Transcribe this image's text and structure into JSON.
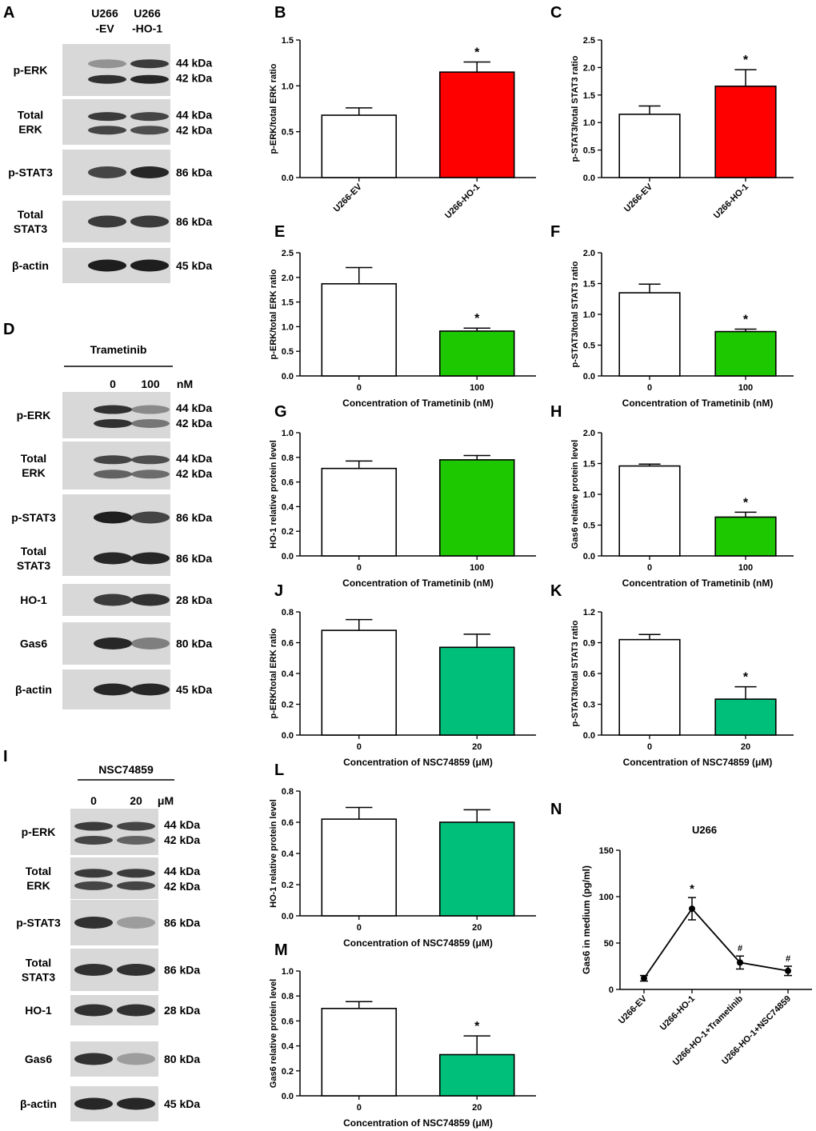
{
  "colors": {
    "red": "#ff0000",
    "green": "#1ec800",
    "teal": "#00bf7a",
    "white": "#ffffff",
    "black": "#000000",
    "blot_bg": "#d8d8d8",
    "band": "#141414"
  },
  "blots": [
    {
      "panel": "A",
      "header": {
        "type": "samples",
        "cols": [
          "U266\n-EV",
          "U266\n-HO-1"
        ]
      },
      "rows": [
        {
          "label": "p-ERK",
          "kda": [
            "44 kDa",
            "42 kDa"
          ],
          "bands": [
            [
              0.35,
              0.8
            ],
            [
              0.85,
              0.9
            ]
          ]
        },
        {
          "label": "Total\nERK",
          "kda": [
            "44 kDa",
            "42 kDa"
          ],
          "bands": [
            [
              0.8,
              0.75
            ],
            [
              0.75,
              0.7
            ]
          ]
        },
        {
          "label": "p-STAT3",
          "kda": [
            "86 kDa"
          ],
          "bands": [
            [
              0.75,
              0.9
            ]
          ]
        },
        {
          "label": "Total\nSTAT3",
          "kda": [
            "86 kDa"
          ],
          "bands": [
            [
              0.8,
              0.8
            ]
          ]
        },
        {
          "label": "β-actin",
          "kda": [
            "45 kDa"
          ],
          "bands": [
            [
              0.95,
              0.95
            ]
          ]
        }
      ]
    },
    {
      "panel": "D",
      "header": {
        "type": "drug",
        "drug": "Trametinib",
        "doses": [
          "0",
          "100"
        ],
        "unit": "nM"
      },
      "rows": [
        {
          "label": "p-ERK",
          "kda": [
            "44 kDa",
            "42 kDa"
          ],
          "bands": [
            [
              0.85,
              0.4
            ],
            [
              0.85,
              0.5
            ]
          ]
        },
        {
          "label": "Total\nERK",
          "kda": [
            "44 kDa",
            "42 kDa"
          ],
          "bands": [
            [
              0.75,
              0.7
            ],
            [
              0.6,
              0.55
            ]
          ]
        },
        {
          "label": "p-STAT3",
          "kda": [
            "86 kDa"
          ],
          "bands": [
            [
              0.95,
              0.75
            ]
          ]
        },
        {
          "label": "Total\nSTAT3",
          "kda": [
            "86 kDa"
          ],
          "bands": [
            [
              0.9,
              0.9
            ]
          ]
        },
        {
          "label": "HO-1",
          "kda": [
            "28 kDa"
          ],
          "bands": [
            [
              0.8,
              0.85
            ]
          ]
        },
        {
          "label": "Gas6",
          "kda": [
            "80 kDa"
          ],
          "bands": [
            [
              0.9,
              0.45
            ]
          ]
        },
        {
          "label": "β-actin",
          "kda": [
            "45 kDa"
          ],
          "bands": [
            [
              0.9,
              0.9
            ]
          ]
        }
      ]
    },
    {
      "panel": "I",
      "header": {
        "type": "drug",
        "drug": "NSC74859",
        "doses": [
          "0",
          "20"
        ],
        "unit": "μM"
      },
      "rows": [
        {
          "label": "p-ERK",
          "kda": [
            "44 kDa",
            "42 kDa"
          ],
          "bands": [
            [
              0.8,
              0.75
            ],
            [
              0.75,
              0.6
            ]
          ]
        },
        {
          "label": "Total\nERK",
          "kda": [
            "44 kDa",
            "42 kDa"
          ],
          "bands": [
            [
              0.8,
              0.8
            ],
            [
              0.75,
              0.75
            ]
          ]
        },
        {
          "label": "p-STAT3",
          "kda": [
            "86 kDa"
          ],
          "bands": [
            [
              0.85,
              0.3
            ]
          ]
        },
        {
          "label": "Total\nSTAT3",
          "kda": [
            "86 kDa"
          ],
          "bands": [
            [
              0.85,
              0.85
            ]
          ]
        },
        {
          "label": "HO-1",
          "kda": [
            "28 kDa"
          ],
          "bands": [
            [
              0.85,
              0.85
            ]
          ]
        },
        {
          "label": "Gas6",
          "kda": [
            "80 kDa"
          ],
          "bands": [
            [
              0.85,
              0.3
            ]
          ]
        },
        {
          "label": "β-actin",
          "kda": [
            "45 kDa"
          ],
          "bands": [
            [
              0.9,
              0.9
            ]
          ]
        }
      ]
    }
  ],
  "chart_data": [
    {
      "panel": "B",
      "type": "bar",
      "ylabel": "p-ERK/total ERK ratio",
      "xlabel": "",
      "categories": [
        "U266-EV",
        "U266-HO-1"
      ],
      "rotate_ticks": true,
      "values": [
        0.68,
        1.15
      ],
      "errors": [
        0.08,
        0.11
      ],
      "colors": [
        "white",
        "red"
      ],
      "ylim": [
        0,
        1.5
      ],
      "ticks": [
        0.0,
        0.5,
        1.0,
        1.5
      ],
      "tick_labels": [
        "0.0",
        "0.5",
        "1.0",
        "1.5"
      ],
      "marks": [
        "",
        "*"
      ]
    },
    {
      "panel": "C",
      "type": "bar",
      "ylabel": "p-STAT3/total STAT3 ratio",
      "xlabel": "",
      "categories": [
        "U266-EV",
        "U266-HO-1"
      ],
      "rotate_ticks": true,
      "values": [
        1.15,
        1.66
      ],
      "errors": [
        0.15,
        0.3
      ],
      "colors": [
        "white",
        "red"
      ],
      "ylim": [
        0,
        2.5
      ],
      "ticks": [
        0.0,
        0.5,
        1.0,
        1.5,
        2.0,
        2.5
      ],
      "tick_labels": [
        "0.0",
        "0.5",
        "1.0",
        "1.5",
        "2.0",
        "2.5"
      ],
      "marks": [
        "",
        "*"
      ]
    },
    {
      "panel": "E",
      "type": "bar",
      "ylabel": "p-ERK/total ERK ratio",
      "xlabel": "Concentration of Trametinib (nM)",
      "categories": [
        "0",
        "100"
      ],
      "values": [
        1.87,
        0.91
      ],
      "errors": [
        0.33,
        0.06
      ],
      "colors": [
        "white",
        "green"
      ],
      "ylim": [
        0,
        2.5
      ],
      "ticks": [
        0.0,
        0.5,
        1.0,
        1.5,
        2.0,
        2.5
      ],
      "tick_labels": [
        "0.0",
        "0.5",
        "1.0",
        "1.5",
        "2.0",
        "2.5"
      ],
      "marks": [
        "",
        "*"
      ]
    },
    {
      "panel": "F",
      "type": "bar",
      "ylabel": "p-STAT3/total STAT3 ratio",
      "xlabel": "Concentration of Trametinib (nM)",
      "categories": [
        "0",
        "100"
      ],
      "values": [
        1.35,
        0.72
      ],
      "errors": [
        0.14,
        0.04
      ],
      "colors": [
        "white",
        "green"
      ],
      "ylim": [
        0,
        2.0
      ],
      "ticks": [
        0.0,
        0.5,
        1.0,
        1.5,
        2.0
      ],
      "tick_labels": [
        "0.0",
        "0.5",
        "1.0",
        "1.5",
        "2.0"
      ],
      "marks": [
        "",
        "*"
      ]
    },
    {
      "panel": "G",
      "type": "bar",
      "ylabel": "HO-1 relative protein level",
      "xlabel": "Concentration of Trametinib (nM)",
      "categories": [
        "0",
        "100"
      ],
      "values": [
        0.71,
        0.78
      ],
      "errors": [
        0.06,
        0.035
      ],
      "colors": [
        "white",
        "green"
      ],
      "ylim": [
        0,
        1.0
      ],
      "ticks": [
        0.0,
        0.2,
        0.4,
        0.6,
        0.8,
        1.0
      ],
      "tick_labels": [
        "0.0",
        "0.2",
        "0.4",
        "0.6",
        "0.8",
        "1.0"
      ],
      "marks": [
        "",
        ""
      ]
    },
    {
      "panel": "H",
      "type": "bar",
      "ylabel": "Gas6 relative protein level",
      "xlabel": "Concentration of Trametinib (nM)",
      "categories": [
        "0",
        "100"
      ],
      "values": [
        1.46,
        0.63
      ],
      "errors": [
        0.03,
        0.08
      ],
      "colors": [
        "white",
        "green"
      ],
      "ylim": [
        0,
        2.0
      ],
      "ticks": [
        0.0,
        0.5,
        1.0,
        1.5,
        2.0
      ],
      "tick_labels": [
        "0.0",
        "0.5",
        "1.0",
        "1.5",
        "2.0"
      ],
      "marks": [
        "",
        "*"
      ]
    },
    {
      "panel": "J",
      "type": "bar",
      "ylabel": "p-ERK/total ERK ratio",
      "xlabel": "Concentration of NSC74859 (μM)",
      "categories": [
        "0",
        "20"
      ],
      "values": [
        0.68,
        0.57
      ],
      "errors": [
        0.07,
        0.085
      ],
      "colors": [
        "white",
        "teal"
      ],
      "ylim": [
        0,
        0.8
      ],
      "ticks": [
        0.0,
        0.2,
        0.4,
        0.6,
        0.8
      ],
      "tick_labels": [
        "0.0",
        "0.2",
        "0.4",
        "0.6",
        "0.8"
      ],
      "marks": [
        "",
        ""
      ]
    },
    {
      "panel": "K",
      "type": "bar",
      "ylabel": "p-STAT3/total STAT3 ratio",
      "xlabel": "Concentration of NSC74859 (μM)",
      "categories": [
        "0",
        "20"
      ],
      "values": [
        0.93,
        0.35
      ],
      "errors": [
        0.05,
        0.12
      ],
      "colors": [
        "white",
        "teal"
      ],
      "ylim": [
        0,
        1.2
      ],
      "ticks": [
        0.0,
        0.3,
        0.6,
        0.9,
        1.2
      ],
      "tick_labels": [
        "0.0",
        "0.3",
        "0.6",
        "0.9",
        "1.2"
      ],
      "marks": [
        "",
        "*"
      ]
    },
    {
      "panel": "L",
      "type": "bar",
      "ylabel": "HO-1 relative protein level",
      "xlabel": "Concentration of NSC74859 (μM)",
      "categories": [
        "0",
        "20"
      ],
      "values": [
        0.62,
        0.6
      ],
      "errors": [
        0.075,
        0.08
      ],
      "colors": [
        "white",
        "teal"
      ],
      "ylim": [
        0,
        0.8
      ],
      "ticks": [
        0.0,
        0.2,
        0.4,
        0.6,
        0.8
      ],
      "tick_labels": [
        "0.0",
        "0.2",
        "0.4",
        "0.6",
        "0.8"
      ],
      "marks": [
        "",
        ""
      ]
    },
    {
      "panel": "M",
      "type": "bar",
      "ylabel": "Gas6 relative protein level",
      "xlabel": "Concentration of NSC74859 (μM)",
      "categories": [
        "0",
        "20"
      ],
      "values": [
        0.7,
        0.33
      ],
      "errors": [
        0.055,
        0.15
      ],
      "colors": [
        "white",
        "teal"
      ],
      "ylim": [
        0,
        1.0
      ],
      "ticks": [
        0.0,
        0.2,
        0.4,
        0.6,
        0.8,
        1.0
      ],
      "tick_labels": [
        "0.0",
        "0.2",
        "0.4",
        "0.6",
        "0.8",
        "1.0"
      ],
      "marks": [
        "",
        "*"
      ]
    },
    {
      "panel": "N",
      "type": "line",
      "title": "U266",
      "ylabel": "Gas6 in medium (pg/ml)",
      "xlabel": "",
      "categories": [
        "U266-EV",
        "U266-HO-1",
        "U266-HO-1+Trametinib",
        "U266-HO-1+NSC74859"
      ],
      "values": [
        12,
        87,
        29,
        20
      ],
      "errors": [
        3,
        12,
        7,
        5
      ],
      "ylim": [
        0,
        150
      ],
      "ticks": [
        0,
        50,
        100,
        150
      ],
      "tick_labels": [
        "0",
        "50",
        "100",
        "150"
      ],
      "marks": [
        "",
        "*",
        "#",
        "#"
      ]
    }
  ]
}
